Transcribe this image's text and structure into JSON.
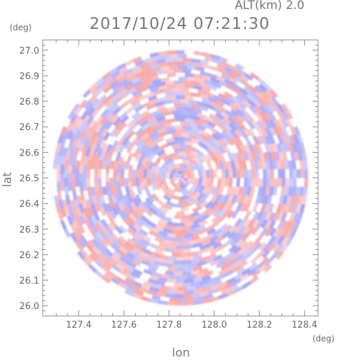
{
  "header": {
    "alt_label": "ALT(km)  2.0",
    "datetime": "2017/10/24 07:21:30"
  },
  "chart_data": {
    "type": "heatmap",
    "title": "2017/10/24 07:21:30",
    "xlabel": "lon",
    "ylabel": "lat",
    "xunit": "(deg)",
    "yunit": "(deg)",
    "xlim": [
      127.24,
      128.46
    ],
    "ylim": [
      25.96,
      27.04
    ],
    "xticks": [
      "127.4",
      "127.6",
      "127.8",
      "128.0",
      "128.2",
      "128.4"
    ],
    "yticks": [
      "26.0",
      "26.1",
      "26.2",
      "26.3",
      "26.4",
      "26.5",
      "26.6",
      "26.7",
      "26.8",
      "26.9",
      "27.0"
    ],
    "center": [
      127.85,
      26.5
    ],
    "radius_deg_lat": 0.5,
    "positive_color": "#f4a8a8",
    "negative_color": "#a8a8f4"
  }
}
